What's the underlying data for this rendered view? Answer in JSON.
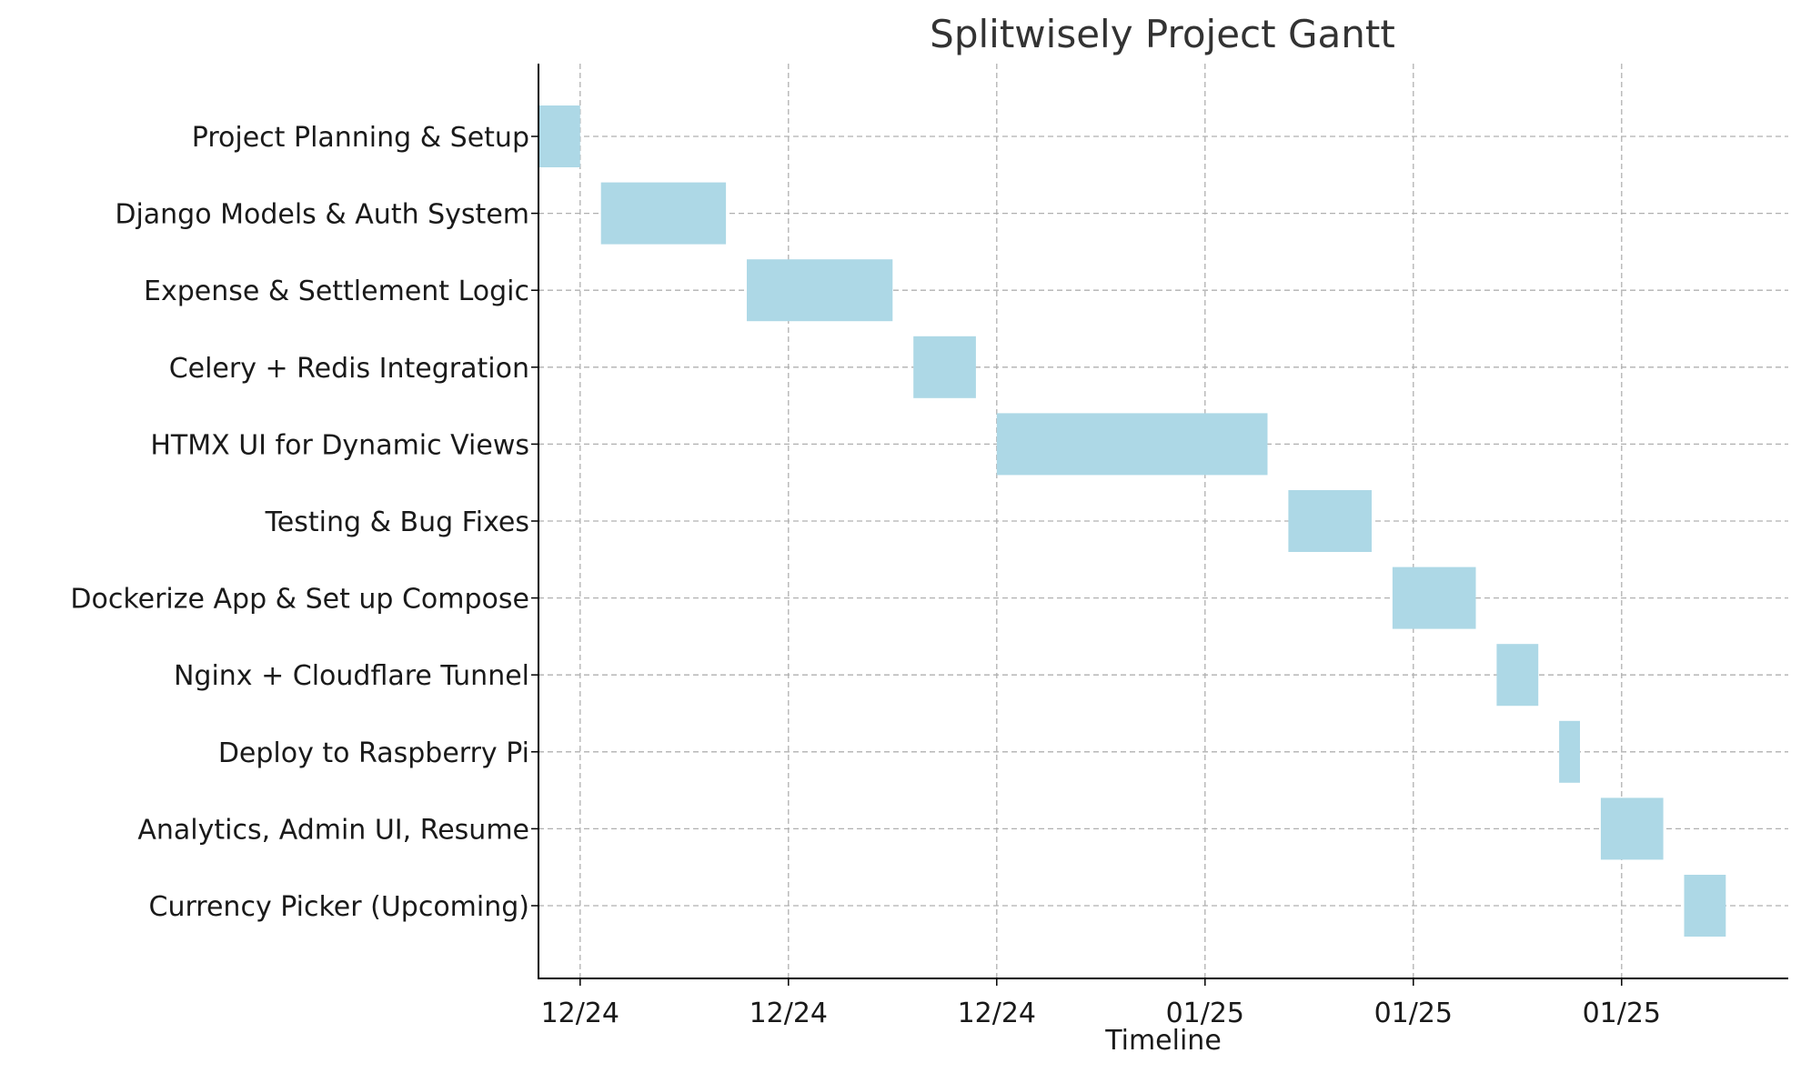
{
  "chart_data": {
    "type": "bar",
    "orientation": "horizontal-gantt",
    "title": "Splitwisely Project Gantt",
    "xlabel": "Timeline",
    "ylabel": "",
    "grid": true,
    "x_tick_labels": [
      "12/24",
      "12/24",
      "12/24",
      "01/25",
      "01/25",
      "01/25"
    ],
    "xlim_days": [
      -2,
      58
    ],
    "x_tick_days": [
      0,
      10,
      20,
      30,
      40,
      50
    ],
    "tasks": [
      {
        "name": "Project Planning & Setup",
        "start_day": -2,
        "end_day": 0
      },
      {
        "name": "Django Models & Auth System",
        "start_day": 1,
        "end_day": 7
      },
      {
        "name": "Expense & Settlement Logic",
        "start_day": 8,
        "end_day": 15
      },
      {
        "name": "Celery + Redis Integration",
        "start_day": 16,
        "end_day": 19
      },
      {
        "name": "HTMX UI for Dynamic Views",
        "start_day": 20,
        "end_day": 33
      },
      {
        "name": "Testing & Bug Fixes",
        "start_day": 34,
        "end_day": 38
      },
      {
        "name": "Dockerize App & Set up Compose",
        "start_day": 39,
        "end_day": 43
      },
      {
        "name": "Nginx + Cloudflare Tunnel",
        "start_day": 44,
        "end_day": 46
      },
      {
        "name": "Deploy to Raspberry Pi",
        "start_day": 47,
        "end_day": 48
      },
      {
        "name": "Analytics, Admin UI, Resume",
        "start_day": 49,
        "end_day": 52
      },
      {
        "name": "Currency Picker (Upcoming)",
        "start_day": 53,
        "end_day": 55
      }
    ],
    "colors": {
      "bar": "#add8e6",
      "grid": "#b0b0b0",
      "axis": "#000000"
    }
  }
}
